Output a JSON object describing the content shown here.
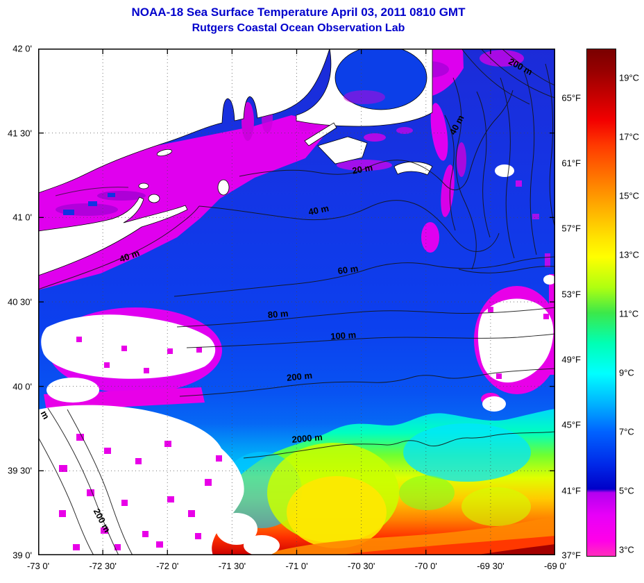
{
  "title": {
    "line1": "NOAA-18 Sea Surface Temperature April 03, 2011 0810 GMT",
    "line2": "Rutgers Coastal Ocean Observation Lab",
    "color": "#0000CC"
  },
  "axes": {
    "x_ticks": [
      "-73 0'",
      "-72 30'",
      "-72 0'",
      "-71 30'",
      "-71 0'",
      "-70 30'",
      "-70 0'",
      "-69 30'",
      "-69 0'"
    ],
    "y_ticks": [
      "42 0'",
      "41 30'",
      "41 0'",
      "40 30'",
      "40 0'",
      "39 30'",
      "39 0'"
    ]
  },
  "colorbar": {
    "f_labels": [
      "65°F",
      "61°F",
      "57°F",
      "53°F",
      "49°F",
      "45°F",
      "41°F",
      "37°F"
    ],
    "c_labels": [
      "19°C",
      "17°C",
      "15°C",
      "13°C",
      "11°C",
      "9°C",
      "7°C",
      "5°C",
      "3°C"
    ]
  },
  "map": {
    "contour_labels": [
      "200 m",
      "40 m",
      "20 m",
      "40 m",
      "40 m",
      "60 m",
      "80 m",
      "100 m",
      "200 m",
      "2000 m",
      "200 m",
      "m"
    ]
  },
  "chart_data": {
    "type": "heatmap",
    "title": "NOAA-18 Sea Surface Temperature April 03, 2011 0810 GMT",
    "subtitle": "Rutgers Coastal Ocean Observation Lab",
    "x_tick_labels": [
      "-73 0'",
      "-72 30'",
      "-72 0'",
      "-71 30'",
      "-71 0'",
      "-70 30'",
      "-70 0'",
      "-69 30'",
      "-69 0'"
    ],
    "y_tick_labels": [
      "42 0'",
      "41 30'",
      "41 0'",
      "40 30'",
      "40 0'",
      "39 30'",
      "39 0'"
    ],
    "x_range_deg": [
      -73,
      -69
    ],
    "y_range_deg": [
      39,
      42
    ],
    "contour_levels_m": [
      20,
      40,
      60,
      80,
      100,
      200,
      2000
    ],
    "colorbar": {
      "celsius_ticks": [
        19,
        17,
        15,
        13,
        11,
        9,
        7,
        5,
        3
      ],
      "fahrenheit_ticks": [
        65,
        61,
        57,
        53,
        49,
        45,
        41,
        37
      ],
      "range_c": [
        2.8,
        20
      ],
      "gradient_stops": [
        [
          0,
          "#7A0000"
        ],
        [
          0.04,
          "#950000"
        ],
        [
          0.09,
          "#C40000"
        ],
        [
          0.14,
          "#F30000"
        ],
        [
          0.19,
          "#FF3A00"
        ],
        [
          0.25,
          "#FF7300"
        ],
        [
          0.31,
          "#FFAB00"
        ],
        [
          0.37,
          "#FFE100"
        ],
        [
          0.41,
          "#FFFF00"
        ],
        [
          0.47,
          "#AFFF10"
        ],
        [
          0.52,
          "#3CE84A"
        ],
        [
          0.58,
          "#00FFB4"
        ],
        [
          0.64,
          "#00FFFF"
        ],
        [
          0.7,
          "#00B2FF"
        ],
        [
          0.755,
          "#0063FF"
        ],
        [
          0.82,
          "#0028E8"
        ],
        [
          0.868,
          "#0000C8"
        ],
        [
          0.875,
          "#B400F0"
        ],
        [
          0.92,
          "#E800F8"
        ],
        [
          0.97,
          "#FF00E8"
        ],
        [
          1,
          "#FF30BC"
        ]
      ]
    }
  }
}
